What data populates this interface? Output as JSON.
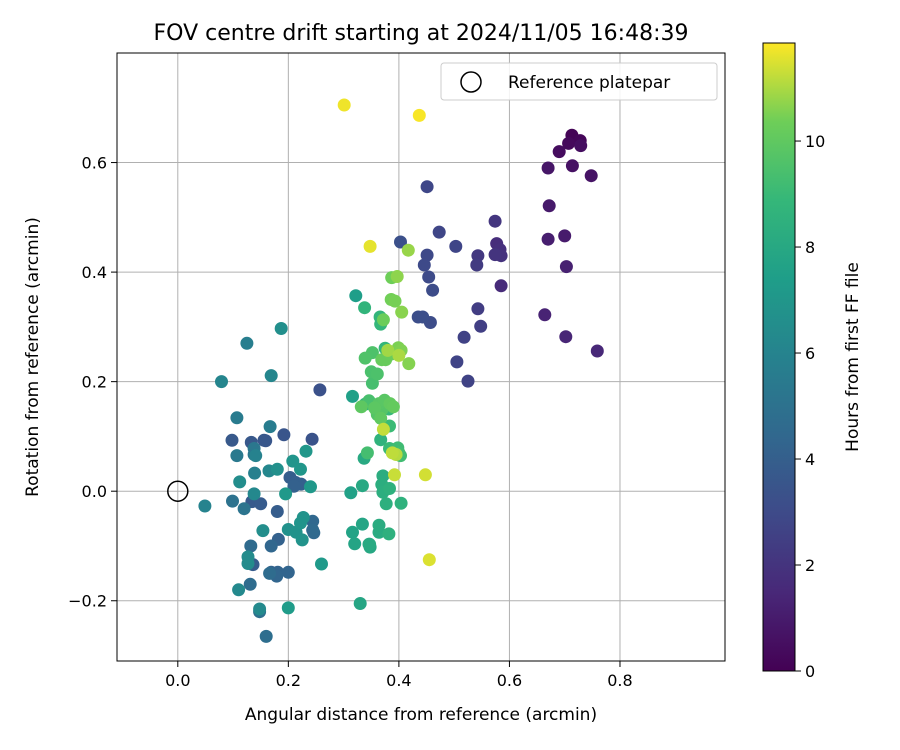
{
  "chart_data": {
    "type": "scatter",
    "title": "FOV centre drift starting at 2024/11/05 16:48:39",
    "xlabel": "Angular distance from reference (arcmin)",
    "ylabel": "Rotation from reference (arcmin)",
    "xlim": [
      -0.11,
      0.99
    ],
    "ylim": [
      -0.31,
      0.8
    ],
    "xticks": [
      0.0,
      0.2,
      0.4,
      0.6,
      0.8
    ],
    "xtick_labels": [
      "0.0",
      "0.2",
      "0.4",
      "0.6",
      "0.8"
    ],
    "yticks": [
      -0.2,
      0.0,
      0.2,
      0.4,
      0.6
    ],
    "ytick_labels": [
      "−0.2",
      "0.0",
      "0.2",
      "0.4",
      "0.6"
    ],
    "grid": true,
    "legend": {
      "position": "top-right",
      "entries": [
        {
          "label": "Reference platepar",
          "marker": "open-circle"
        }
      ]
    },
    "reference_point": {
      "x": 0.0,
      "y": 0.0
    },
    "colorbar": {
      "label": "Hours from first FF file",
      "colormap": "viridis",
      "range": [
        0,
        11.85
      ],
      "ticks": [
        0,
        2,
        4,
        6,
        8,
        10
      ],
      "tick_labels": [
        "0",
        "2",
        "4",
        "6",
        "8",
        "10"
      ]
    },
    "points": [
      {
        "x": 0.713,
        "y": 0.65,
        "h": 0.1
      },
      {
        "x": 0.728,
        "y": 0.64,
        "h": 0.2
      },
      {
        "x": 0.707,
        "y": 0.635,
        "h": 0.3
      },
      {
        "x": 0.69,
        "y": 0.62,
        "h": 0.4
      },
      {
        "x": 0.729,
        "y": 0.631,
        "h": 0.5
      },
      {
        "x": 0.714,
        "y": 0.594,
        "h": 0.6
      },
      {
        "x": 0.748,
        "y": 0.576,
        "h": 0.7
      },
      {
        "x": 0.67,
        "y": 0.59,
        "h": 0.8
      },
      {
        "x": 0.672,
        "y": 0.521,
        "h": 0.9
      },
      {
        "x": 0.7,
        "y": 0.466,
        "h": 1.0
      },
      {
        "x": 0.67,
        "y": 0.46,
        "h": 1.1
      },
      {
        "x": 0.703,
        "y": 0.41,
        "h": 1.2
      },
      {
        "x": 0.664,
        "y": 0.322,
        "h": 1.3
      },
      {
        "x": 0.702,
        "y": 0.282,
        "h": 1.4
      },
      {
        "x": 0.759,
        "y": 0.256,
        "h": 1.5
      },
      {
        "x": 0.585,
        "y": 0.375,
        "h": 1.6
      },
      {
        "x": 0.577,
        "y": 0.452,
        "h": 1.7
      },
      {
        "x": 0.583,
        "y": 0.441,
        "h": 1.8
      },
      {
        "x": 0.585,
        "y": 0.43,
        "h": 1.9
      },
      {
        "x": 0.574,
        "y": 0.432,
        "h": 2.0
      },
      {
        "x": 0.574,
        "y": 0.493,
        "h": 2.1
      },
      {
        "x": 0.543,
        "y": 0.43,
        "h": 2.2
      },
      {
        "x": 0.541,
        "y": 0.413,
        "h": 2.3
      },
      {
        "x": 0.543,
        "y": 0.333,
        "h": 2.4
      },
      {
        "x": 0.548,
        "y": 0.301,
        "h": 2.5
      },
      {
        "x": 0.518,
        "y": 0.281,
        "h": 2.6
      },
      {
        "x": 0.525,
        "y": 0.201,
        "h": 2.65
      },
      {
        "x": 0.505,
        "y": 0.236,
        "h": 2.7
      },
      {
        "x": 0.503,
        "y": 0.447,
        "h": 2.75
      },
      {
        "x": 0.473,
        "y": 0.473,
        "h": 2.8
      },
      {
        "x": 0.451,
        "y": 0.556,
        "h": 2.85
      },
      {
        "x": 0.451,
        "y": 0.431,
        "h": 2.9
      },
      {
        "x": 0.446,
        "y": 0.413,
        "h": 2.95
      },
      {
        "x": 0.454,
        "y": 0.391,
        "h": 3.0
      },
      {
        "x": 0.461,
        "y": 0.367,
        "h": 3.05
      },
      {
        "x": 0.457,
        "y": 0.308,
        "h": 3.1
      },
      {
        "x": 0.435,
        "y": 0.318,
        "h": 3.15
      },
      {
        "x": 0.443,
        "y": 0.318,
        "h": 3.2
      },
      {
        "x": 0.403,
        "y": 0.455,
        "h": 3.25
      },
      {
        "x": 0.257,
        "y": 0.185,
        "h": 3.3
      },
      {
        "x": 0.243,
        "y": 0.095,
        "h": 3.4
      },
      {
        "x": 0.192,
        "y": 0.103,
        "h": 3.5
      },
      {
        "x": 0.159,
        "y": 0.092,
        "h": 3.55
      },
      {
        "x": 0.156,
        "y": 0.093,
        "h": 3.6
      },
      {
        "x": 0.133,
        "y": 0.089,
        "h": 3.65
      },
      {
        "x": 0.098,
        "y": 0.093,
        "h": 3.7
      },
      {
        "x": 0.134,
        "y": -0.019,
        "h": 3.75
      },
      {
        "x": 0.15,
        "y": -0.023,
        "h": 3.8
      },
      {
        "x": 0.136,
        "y": -0.134,
        "h": 3.85
      },
      {
        "x": 0.18,
        "y": -0.037,
        "h": 3.9
      },
      {
        "x": 0.203,
        "y": 0.025,
        "h": 3.95
      },
      {
        "x": 0.213,
        "y": 0.016,
        "h": 4.0
      },
      {
        "x": 0.223,
        "y": 0.013,
        "h": 4.05
      },
      {
        "x": 0.21,
        "y": 0.009,
        "h": 4.1
      },
      {
        "x": 0.182,
        "y": -0.088,
        "h": 4.15
      },
      {
        "x": 0.169,
        "y": -0.148,
        "h": 4.2
      },
      {
        "x": 0.181,
        "y": -0.148,
        "h": 4.25
      },
      {
        "x": 0.2,
        "y": -0.148,
        "h": 4.3
      },
      {
        "x": 0.179,
        "y": -0.155,
        "h": 4.35
      },
      {
        "x": 0.169,
        "y": -0.1,
        "h": 4.4
      },
      {
        "x": 0.244,
        "y": -0.055,
        "h": 4.45
      },
      {
        "x": 0.246,
        "y": -0.076,
        "h": 4.5
      },
      {
        "x": 0.244,
        "y": -0.071,
        "h": 4.55
      },
      {
        "x": 0.132,
        "y": -0.1,
        "h": 4.6
      },
      {
        "x": 0.131,
        "y": -0.17,
        "h": 4.65
      },
      {
        "x": 0.166,
        "y": -0.15,
        "h": 4.7
      },
      {
        "x": 0.16,
        "y": -0.265,
        "h": 4.8
      },
      {
        "x": 0.148,
        "y": -0.22,
        "h": 4.9
      },
      {
        "x": 0.099,
        "y": -0.018,
        "h": 5.0
      },
      {
        "x": 0.12,
        "y": -0.032,
        "h": 5.1
      },
      {
        "x": 0.138,
        "y": 0.067,
        "h": 5.2
      },
      {
        "x": 0.138,
        "y": 0.078,
        "h": 5.3
      },
      {
        "x": 0.107,
        "y": 0.065,
        "h": 5.4
      },
      {
        "x": 0.107,
        "y": 0.134,
        "h": 5.5
      },
      {
        "x": 0.167,
        "y": 0.118,
        "h": 5.6
      },
      {
        "x": 0.125,
        "y": 0.27,
        "h": 5.7
      },
      {
        "x": 0.139,
        "y": 0.033,
        "h": 5.8
      },
      {
        "x": 0.141,
        "y": 0.065,
        "h": 5.9
      },
      {
        "x": 0.049,
        "y": -0.027,
        "h": 6.0
      },
      {
        "x": 0.079,
        "y": 0.2,
        "h": 6.1
      },
      {
        "x": 0.169,
        "y": 0.211,
        "h": 6.15
      },
      {
        "x": 0.165,
        "y": 0.037,
        "h": 6.2
      },
      {
        "x": 0.138,
        "y": -0.005,
        "h": 6.25
      },
      {
        "x": 0.11,
        "y": -0.18,
        "h": 6.3
      },
      {
        "x": 0.148,
        "y": -0.215,
        "h": 6.35
      },
      {
        "x": 0.127,
        "y": -0.132,
        "h": 6.4
      },
      {
        "x": 0.127,
        "y": -0.12,
        "h": 6.45
      },
      {
        "x": 0.112,
        "y": 0.017,
        "h": 6.5
      },
      {
        "x": 0.154,
        "y": -0.072,
        "h": 6.55
      },
      {
        "x": 0.187,
        "y": 0.297,
        "h": 6.6
      },
      {
        "x": 0.18,
        "y": 0.04,
        "h": 6.65
      },
      {
        "x": 0.2,
        "y": -0.07,
        "h": 6.7
      },
      {
        "x": 0.214,
        "y": -0.075,
        "h": 6.75
      },
      {
        "x": 0.225,
        "y": -0.089,
        "h": 6.8
      },
      {
        "x": 0.227,
        "y": -0.048,
        "h": 6.85
      },
      {
        "x": 0.222,
        "y": -0.058,
        "h": 6.9
      },
      {
        "x": 0.208,
        "y": 0.055,
        "h": 6.95
      },
      {
        "x": 0.222,
        "y": 0.04,
        "h": 7.0
      },
      {
        "x": 0.232,
        "y": 0.073,
        "h": 7.05
      },
      {
        "x": 0.24,
        "y": 0.008,
        "h": 7.1
      },
      {
        "x": 0.195,
        "y": -0.005,
        "h": 7.15
      },
      {
        "x": 0.26,
        "y": -0.133,
        "h": 7.2
      },
      {
        "x": 0.2,
        "y": -0.213,
        "h": 7.3
      },
      {
        "x": 0.322,
        "y": 0.357,
        "h": 7.4
      },
      {
        "x": 0.316,
        "y": 0.173,
        "h": 7.5
      },
      {
        "x": 0.313,
        "y": -0.003,
        "h": 7.6
      },
      {
        "x": 0.316,
        "y": -0.075,
        "h": 7.7
      },
      {
        "x": 0.32,
        "y": -0.096,
        "h": 7.75
      },
      {
        "x": 0.334,
        "y": -0.06,
        "h": 7.8
      },
      {
        "x": 0.33,
        "y": -0.205,
        "h": 7.85
      },
      {
        "x": 0.346,
        "y": -0.097,
        "h": 7.9
      },
      {
        "x": 0.348,
        "y": -0.102,
        "h": 7.95
      },
      {
        "x": 0.334,
        "y": 0.01,
        "h": 8.0
      },
      {
        "x": 0.337,
        "y": 0.06,
        "h": 8.05
      },
      {
        "x": 0.347,
        "y": -0.097,
        "h": 8.1
      },
      {
        "x": 0.364,
        "y": -0.075,
        "h": 8.15
      },
      {
        "x": 0.364,
        "y": -0.062,
        "h": 8.2
      },
      {
        "x": 0.371,
        "y": 0.028,
        "h": 8.25
      },
      {
        "x": 0.369,
        "y": 0.012,
        "h": 8.3
      },
      {
        "x": 0.371,
        "y": -0.002,
        "h": 8.35
      },
      {
        "x": 0.377,
        "y": -0.023,
        "h": 8.4
      },
      {
        "x": 0.382,
        "y": -0.078,
        "h": 8.45
      },
      {
        "x": 0.383,
        "y": 0.005,
        "h": 8.5
      },
      {
        "x": 0.404,
        "y": -0.022,
        "h": 8.55
      },
      {
        "x": 0.367,
        "y": 0.094,
        "h": 8.6
      },
      {
        "x": 0.339,
        "y": 0.159,
        "h": 8.65
      },
      {
        "x": 0.338,
        "y": 0.335,
        "h": 8.7
      },
      {
        "x": 0.366,
        "y": 0.318,
        "h": 8.75
      },
      {
        "x": 0.367,
        "y": 0.305,
        "h": 8.8
      },
      {
        "x": 0.375,
        "y": 0.261,
        "h": 8.85
      },
      {
        "x": 0.378,
        "y": 0.161,
        "h": 8.9
      },
      {
        "x": 0.382,
        "y": 0.15,
        "h": 8.95
      },
      {
        "x": 0.383,
        "y": 0.078,
        "h": 9.0
      },
      {
        "x": 0.383,
        "y": 0.119,
        "h": 9.05
      },
      {
        "x": 0.394,
        "y": 0.075,
        "h": 9.1
      },
      {
        "x": 0.398,
        "y": 0.079,
        "h": 9.15
      },
      {
        "x": 0.403,
        "y": 0.065,
        "h": 9.2
      },
      {
        "x": 0.4,
        "y": 0.07,
        "h": 9.25
      },
      {
        "x": 0.343,
        "y": 0.07,
        "h": 9.3
      },
      {
        "x": 0.352,
        "y": 0.197,
        "h": 9.35
      },
      {
        "x": 0.346,
        "y": 0.165,
        "h": 9.4
      },
      {
        "x": 0.35,
        "y": 0.218,
        "h": 9.45
      },
      {
        "x": 0.361,
        "y": 0.214,
        "h": 9.5
      },
      {
        "x": 0.352,
        "y": 0.253,
        "h": 9.55
      },
      {
        "x": 0.339,
        "y": 0.243,
        "h": 9.6
      },
      {
        "x": 0.359,
        "y": 0.148,
        "h": 9.65
      },
      {
        "x": 0.361,
        "y": 0.14,
        "h": 9.7
      },
      {
        "x": 0.37,
        "y": 0.15,
        "h": 9.75
      },
      {
        "x": 0.364,
        "y": 0.16,
        "h": 9.8
      },
      {
        "x": 0.374,
        "y": 0.166,
        "h": 9.85
      },
      {
        "x": 0.356,
        "y": 0.152,
        "h": 9.9
      },
      {
        "x": 0.332,
        "y": 0.154,
        "h": 9.95
      },
      {
        "x": 0.367,
        "y": 0.133,
        "h": 10.0
      },
      {
        "x": 0.384,
        "y": 0.16,
        "h": 10.05
      },
      {
        "x": 0.39,
        "y": 0.154,
        "h": 10.1
      },
      {
        "x": 0.369,
        "y": 0.24,
        "h": 10.15
      },
      {
        "x": 0.376,
        "y": 0.24,
        "h": 10.2
      },
      {
        "x": 0.385,
        "y": 0.25,
        "h": 10.25
      },
      {
        "x": 0.372,
        "y": 0.313,
        "h": 10.3
      },
      {
        "x": 0.387,
        "y": 0.39,
        "h": 10.35
      },
      {
        "x": 0.386,
        "y": 0.35,
        "h": 10.4
      },
      {
        "x": 0.393,
        "y": 0.347,
        "h": 10.45
      },
      {
        "x": 0.399,
        "y": 0.262,
        "h": 10.5
      },
      {
        "x": 0.404,
        "y": 0.257,
        "h": 10.55
      },
      {
        "x": 0.418,
        "y": 0.233,
        "h": 10.6
      },
      {
        "x": 0.405,
        "y": 0.327,
        "h": 10.65
      },
      {
        "x": 0.397,
        "y": 0.392,
        "h": 10.7
      },
      {
        "x": 0.417,
        "y": 0.44,
        "h": 10.8
      },
      {
        "x": 0.38,
        "y": 0.257,
        "h": 10.9
      },
      {
        "x": 0.4,
        "y": 0.248,
        "h": 11.0
      },
      {
        "x": 0.395,
        "y": 0.067,
        "h": 11.1
      },
      {
        "x": 0.388,
        "y": 0.07,
        "h": 11.2
      },
      {
        "x": 0.372,
        "y": 0.113,
        "h": 11.25
      },
      {
        "x": 0.392,
        "y": 0.03,
        "h": 11.3
      },
      {
        "x": 0.448,
        "y": 0.03,
        "h": 11.4
      },
      {
        "x": 0.455,
        "y": -0.125,
        "h": 11.5
      },
      {
        "x": 0.348,
        "y": 0.447,
        "h": 11.6
      },
      {
        "x": 0.301,
        "y": 0.705,
        "h": 11.7
      },
      {
        "x": 0.437,
        "y": 0.686,
        "h": 11.8
      }
    ]
  }
}
